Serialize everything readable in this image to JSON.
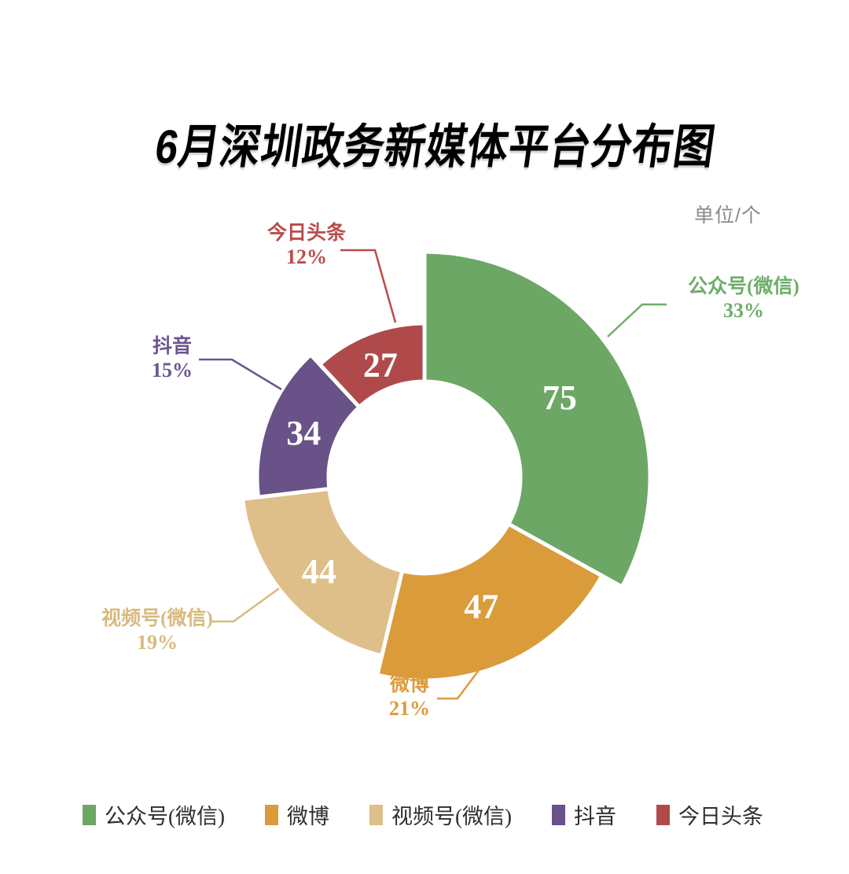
{
  "title": "6月深圳政务新媒体平台分布图",
  "unit_label": "单位/个",
  "chart_data": {
    "type": "pie",
    "subtype": "variable-radius-donut",
    "title": "6月深圳政务新媒体平台分布图",
    "unit": "个",
    "total": 227,
    "start_angle": "12-oclock",
    "direction": "clockwise",
    "grid": false,
    "legend_position": "bottom",
    "slices": [
      {
        "label": "公众号(微信)",
        "value": 75,
        "percent": "33%",
        "color": "#6DA765",
        "label_color": "#6FAE68"
      },
      {
        "label": "微博",
        "value": 47,
        "percent": "21%",
        "color": "#DA9B3B",
        "label_color": "#DC9C3C"
      },
      {
        "label": "视频号(微信)",
        "value": 44,
        "percent": "19%",
        "color": "#DEBF89",
        "label_color": "#D8BA7E"
      },
      {
        "label": "抖音",
        "value": 34,
        "percent": "15%",
        "color": "#685287",
        "label_color": "#6B5590"
      },
      {
        "label": "今日头条",
        "value": 27,
        "percent": "12%",
        "color": "#B04A4A",
        "label_color": "#BC4B4B"
      }
    ]
  },
  "colors": {
    "title_text": "#000000",
    "unit_text": "#8A8A8A",
    "legend_text": "#2E2E2E",
    "slice_value_text": "#FFFFFF",
    "background": "#FFFFFF"
  }
}
